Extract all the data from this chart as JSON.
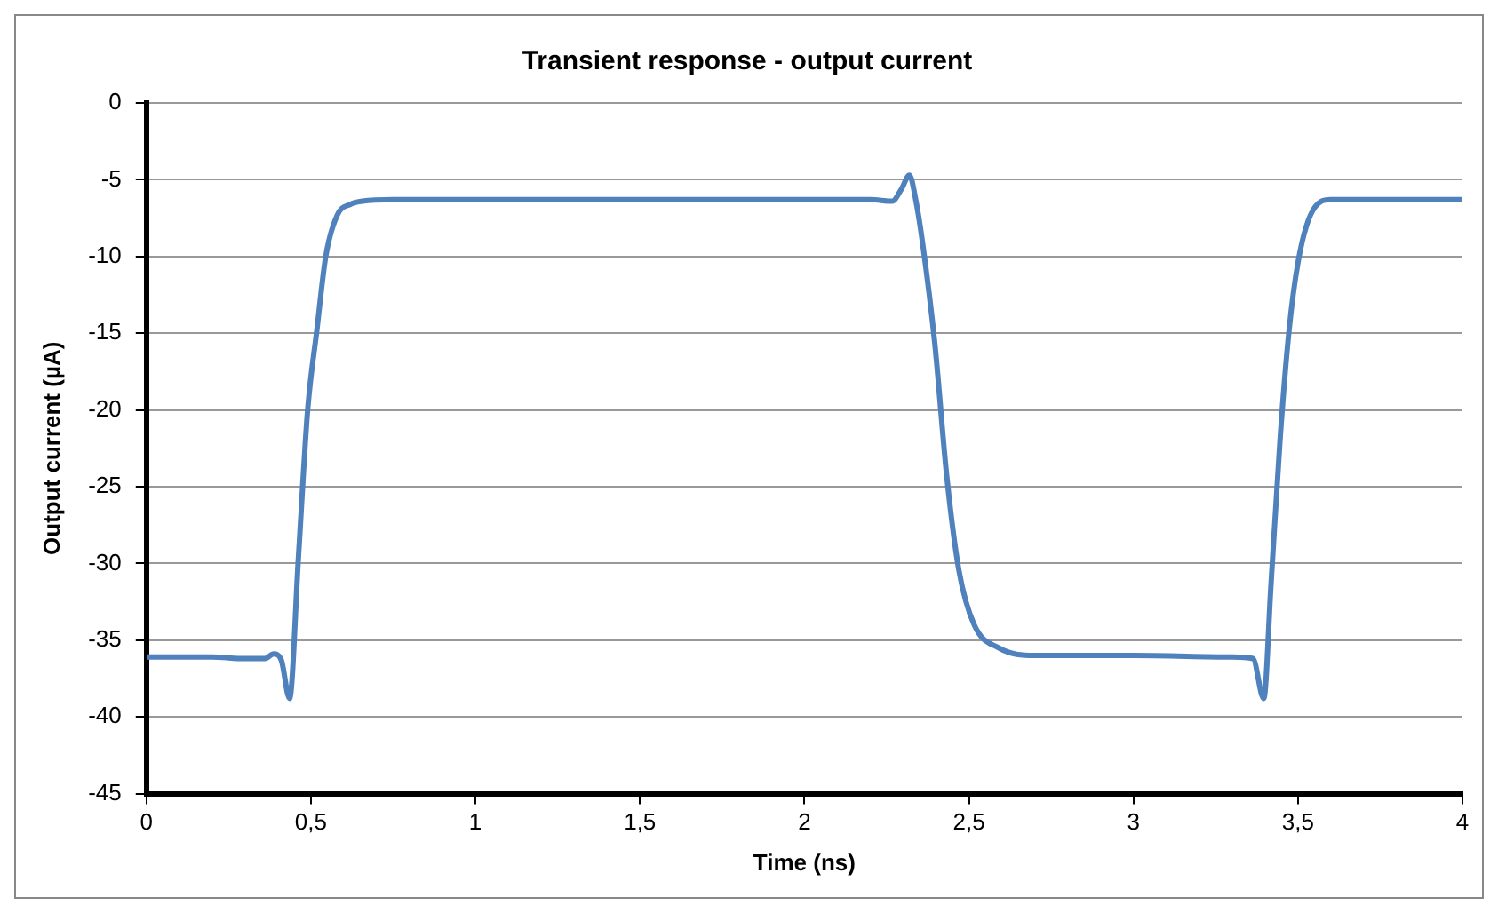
{
  "chart_data": {
    "type": "line",
    "title": "Transient response - output current",
    "xlabel": "Time (ns)",
    "ylabel": "Output current (µA)",
    "xlim": [
      0,
      4
    ],
    "xticks": [
      0,
      {
        "value": 0.5,
        "label": "0,5"
      },
      1,
      {
        "value": 1.5,
        "label": "1,5"
      },
      2,
      {
        "value": 2.5,
        "label": "2,5"
      },
      3,
      {
        "value": 3.5,
        "label": "3,5"
      },
      4
    ],
    "ylim": [
      -45,
      0
    ],
    "yticks": [
      -45,
      -40,
      -35,
      -30,
      -25,
      -20,
      -15,
      -10,
      -5,
      0
    ],
    "grid": "y",
    "legend": false,
    "marker": "none",
    "line_style": "solid",
    "series": [
      {
        "color": "#4f81bd",
        "x": [
          0,
          0.1,
          0.2,
          0.3,
          0.36,
          0.387,
          0.41,
          0.435,
          0.462,
          0.49,
          0.518,
          0.545,
          0.58,
          0.62,
          0.656,
          0.75,
          1,
          1.5,
          2,
          2.2,
          2.267,
          2.295,
          2.319,
          2.34,
          2.359,
          2.396,
          2.433,
          2.47,
          2.516,
          2.59,
          2.7,
          3,
          3.3,
          3.363,
          3.396,
          3.418,
          3.446,
          3.473,
          3.5,
          3.538,
          3.6,
          3.8,
          4
        ],
        "values": [
          -36.1,
          -36.1,
          -36.1,
          -36.2,
          -36.2,
          -35.9,
          -36.3,
          -38.8,
          -29.6,
          -20,
          -14.8,
          -10,
          -7.3,
          -6.6,
          -6.4,
          -6.3,
          -6.3,
          -6.3,
          -6.3,
          -6.3,
          -6.4,
          -5.6,
          -4.7,
          -6.5,
          -9.1,
          -15.6,
          -24.4,
          -30.5,
          -34,
          -35.5,
          -36,
          -36,
          -36.1,
          -36.2,
          -38.8,
          -31.4,
          -21.8,
          -14.8,
          -10.4,
          -7.3,
          -6.3,
          -6.3,
          -6.3
        ]
      }
    ]
  }
}
